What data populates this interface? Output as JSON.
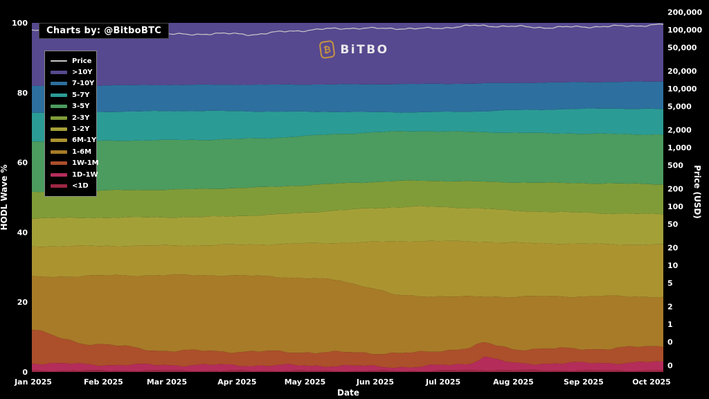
{
  "watermark": {
    "badge": "Charts by: @BitboBTC",
    "logo_icon": "bitcoin-icon",
    "logo_glyph": "₿",
    "logo_text": "BiTBO",
    "logo_color": "#c79440"
  },
  "axes": {
    "left": {
      "title": "HODL Wave %",
      "ticks": [
        100,
        80,
        60,
        40,
        20,
        0
      ],
      "range": [
        0,
        100
      ]
    },
    "right": {
      "title": "Price (USD)",
      "scale": "log",
      "ticks": [
        {
          "label": "200,000",
          "value": 200000
        },
        {
          "label": "100,000",
          "value": 100000
        },
        {
          "label": "50,000",
          "value": 50000
        },
        {
          "label": "20,000",
          "value": 20000
        },
        {
          "label": "10,000",
          "value": 10000
        },
        {
          "label": "5,000",
          "value": 5000
        },
        {
          "label": "2,000",
          "value": 2000
        },
        {
          "label": "1,000",
          "value": 1000
        },
        {
          "label": "500",
          "value": 500
        },
        {
          "label": "200",
          "value": 200
        },
        {
          "label": "100",
          "value": 100
        },
        {
          "label": "50",
          "value": 50
        },
        {
          "label": "20",
          "value": 20
        },
        {
          "label": "10",
          "value": 10
        },
        {
          "label": "5",
          "value": 5
        },
        {
          "label": "2",
          "value": 2
        },
        {
          "label": "1",
          "value": 1
        },
        {
          "label": "0",
          "value": 0.5
        },
        {
          "label": "0",
          "value": 0.2
        }
      ]
    },
    "x": {
      "title": "Date",
      "ticks": [
        {
          "label": "Jan 2025",
          "day": 0
        },
        {
          "label": "Feb 2025",
          "day": 31
        },
        {
          "label": "Mar 2025",
          "day": 59
        },
        {
          "label": "Apr 2025",
          "day": 90
        },
        {
          "label": "May 2025",
          "day": 120
        },
        {
          "label": "Jun 2025",
          "day": 151
        },
        {
          "label": "Jul 2025",
          "day": 181
        },
        {
          "label": "Aug 2025",
          "day": 212
        },
        {
          "label": "Sep 2025",
          "day": 243
        },
        {
          "label": "Oct 2025",
          "day": 273
        }
      ]
    }
  },
  "legend": {
    "items": [
      {
        "label": "Price",
        "color": "#c9c9c9",
        "type": "line"
      },
      {
        "label": ">10Y",
        "color": "#57498f",
        "type": "area"
      },
      {
        "label": "7-10Y",
        "color": "#2d6f9e",
        "type": "area"
      },
      {
        "label": "5-7Y",
        "color": "#2b9b95",
        "type": "area"
      },
      {
        "label": "3-5Y",
        "color": "#4c9b5f",
        "type": "area"
      },
      {
        "label": "2-3Y",
        "color": "#809c38",
        "type": "area"
      },
      {
        "label": "1-2Y",
        "color": "#a4a038",
        "type": "area"
      },
      {
        "label": "6M-1Y",
        "color": "#ab9330",
        "type": "area"
      },
      {
        "label": "1-6M",
        "color": "#a87b28",
        "type": "area"
      },
      {
        "label": "1W-1M",
        "color": "#ac4f2b",
        "type": "area"
      },
      {
        "label": "1D-1W",
        "color": "#b42d5a",
        "type": "area"
      },
      {
        "label": "<1D",
        "color": "#9c2744",
        "type": "area"
      }
    ]
  },
  "chart_data": {
    "type": "area",
    "subtype": "stacked-100pct-hodl-waves",
    "title": "",
    "xlabel": "Date",
    "ylabel_left": "HODL Wave %",
    "ylabel_right": "Price (USD)",
    "ylim_left": [
      0,
      100
    ],
    "x_unit": "days since 2025-01-01",
    "x_range_days": [
      0,
      278
    ],
    "grid": false,
    "legend_position": "upper-left",
    "stack_order_bottom_to_top": [
      "<1D",
      "1D-1W",
      "1W-1M",
      "1-6M",
      "6M-1Y",
      "1-2Y",
      "2-3Y",
      "3-5Y",
      "5-7Y",
      "7-10Y",
      ">10Y"
    ],
    "band_colors_bottom_to_top": [
      "#9c2744",
      "#b42d5a",
      "#ac4f2b",
      "#a87b28",
      "#ab9330",
      "#a4a038",
      "#809c38",
      "#4c9b5f",
      "#2b9b95",
      "#2d6f9e",
      "#57498f"
    ],
    "cum_boundaries_note": "cum[i] = cumulative % of supply from bottom up to and including band i (top of band i); top band reaches 100",
    "samples": [
      {
        "day": 0,
        "cum": [
          0.4,
          2.6,
          12.3,
          27.2,
          36.0,
          44.0,
          51.5,
          66.0,
          74.3,
          82.0
        ]
      },
      {
        "day": 10,
        "cum": [
          0.4,
          2.4,
          10.0,
          27.3,
          36.0,
          44.1,
          51.6,
          66.0,
          74.3,
          82.0
        ]
      },
      {
        "day": 21,
        "cum": [
          0.4,
          2.2,
          8.3,
          27.5,
          36.1,
          44.1,
          51.8,
          66.1,
          74.4,
          82.1
        ]
      },
      {
        "day": 30,
        "cum": [
          0.4,
          2.1,
          8.0,
          27.6,
          36.1,
          44.2,
          52.0,
          66.2,
          74.5,
          82.1
        ]
      },
      {
        "day": 54,
        "cum": [
          0.4,
          2.0,
          6.2,
          27.7,
          36.2,
          44.3,
          52.2,
          66.4,
          74.7,
          82.2
        ]
      },
      {
        "day": 75,
        "cum": [
          0.35,
          2.0,
          6.0,
          27.8,
          36.3,
          44.4,
          52.4,
          66.5,
          74.8,
          82.3
        ]
      },
      {
        "day": 105,
        "cum": [
          0.35,
          1.9,
          5.8,
          27.4,
          36.6,
          45.0,
          53.0,
          67.0,
          74.6,
          82.3
        ]
      },
      {
        "day": 135,
        "cum": [
          0.3,
          1.8,
          5.6,
          26.3,
          37.0,
          46.3,
          54.0,
          68.2,
          74.5,
          82.4
        ]
      },
      {
        "day": 150,
        "cum": [
          0.3,
          1.6,
          5.5,
          24.0,
          37.2,
          46.9,
          54.4,
          68.6,
          74.4,
          82.4
        ]
      },
      {
        "day": 160,
        "cum": [
          0.3,
          1.5,
          5.4,
          22.0,
          37.4,
          47.2,
          54.7,
          68.9,
          74.4,
          82.5
        ]
      },
      {
        "day": 169,
        "cum": [
          0.3,
          1.4,
          5.4,
          21.8,
          37.5,
          47.4,
          54.8,
          69.0,
          74.4,
          82.5
        ]
      },
      {
        "day": 193,
        "cum": [
          0.5,
          2.5,
          7.0,
          21.5,
          37.4,
          47.0,
          54.6,
          68.8,
          74.6,
          82.6
        ]
      },
      {
        "day": 199,
        "cum": [
          0.6,
          4.4,
          8.3,
          21.6,
          37.3,
          46.8,
          54.5,
          68.7,
          74.7,
          82.7
        ]
      },
      {
        "day": 212,
        "cum": [
          0.5,
          2.4,
          6.6,
          21.6,
          37.0,
          46.2,
          54.3,
          68.5,
          75.0,
          82.8
        ]
      },
      {
        "day": 254,
        "cum": [
          0.4,
          2.6,
          6.7,
          21.7,
          36.6,
          45.4,
          54.0,
          68.2,
          75.5,
          83.1
        ]
      },
      {
        "day": 278,
        "cum": [
          0.5,
          2.8,
          7.5,
          21.5,
          36.4,
          45.2,
          53.8,
          68.0,
          75.3,
          83.2
        ]
      }
    ],
    "price": {
      "name": "Price",
      "color": "#c9c9c9",
      "day": [
        0,
        14,
        31,
        45,
        59,
        68,
        80,
        97,
        112,
        130,
        140,
        151,
        160,
        170,
        181,
        195,
        204,
        212,
        226,
        240,
        254,
        266,
        278
      ],
      "usd": [
        96000,
        102000,
        98000,
        96000,
        86000,
        82000,
        87000,
        83000,
        94000,
        103000,
        107000,
        105000,
        106000,
        104000,
        108000,
        118000,
        116000,
        114000,
        109000,
        112000,
        114000,
        117000,
        123000
      ]
    }
  }
}
